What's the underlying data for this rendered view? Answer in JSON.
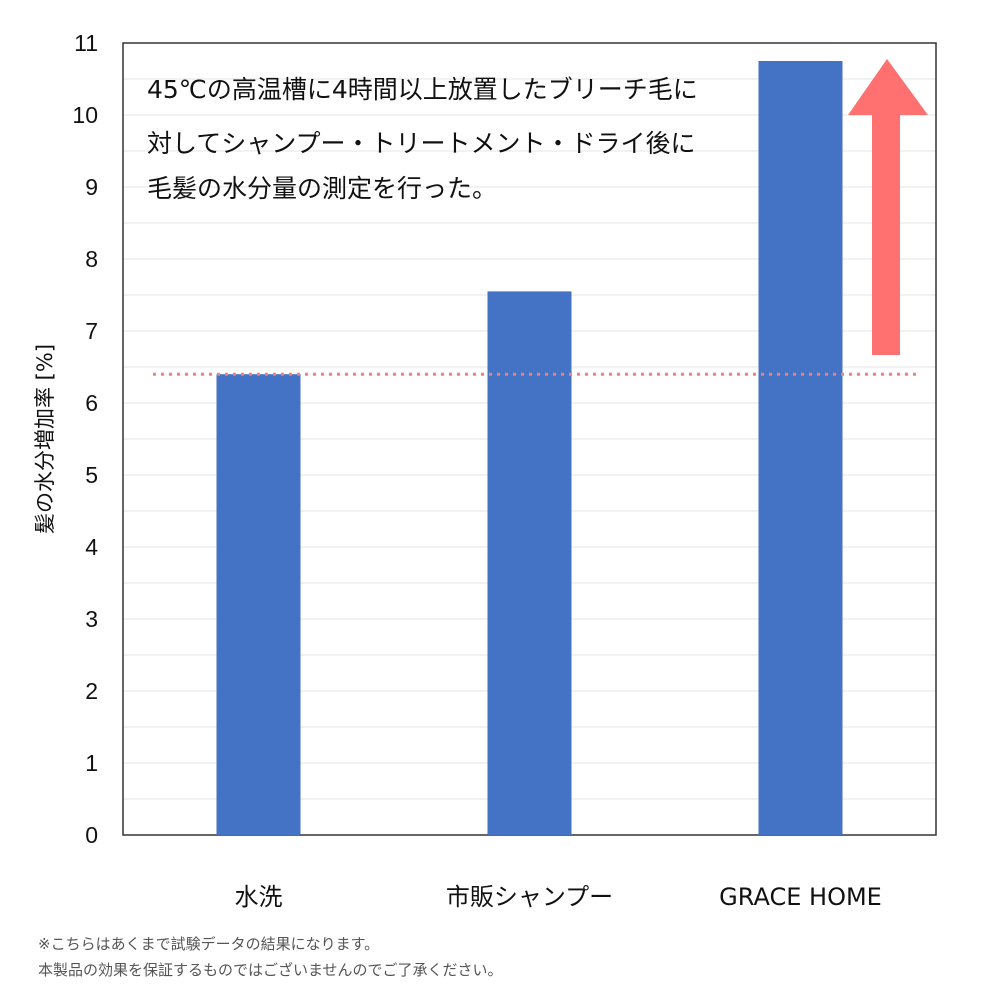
{
  "chart_data": {
    "type": "bar",
    "categories": [
      "水洗",
      "市販シャンプー",
      "GRACE HOME"
    ],
    "values": [
      6.4,
      7.55,
      10.75
    ],
    "ylabel": "髪の水分増加率 [%]",
    "xlabel": "",
    "ylim": [
      0,
      11
    ],
    "yticks": [
      0,
      1,
      2,
      3,
      4,
      5,
      6,
      7,
      8,
      9,
      10,
      11
    ],
    "grid": true,
    "bar_color": "#4472C4",
    "reference_line": {
      "value": 6.4,
      "style": "dotted",
      "color": "#F08080"
    },
    "arrow": {
      "direction": "up",
      "color": "#FF7070"
    },
    "annotation": [
      "45℃の高温槽に4時間以上放置したブリーチ毛に",
      "対してシャンプー・トリートメント・ドライ後に",
      "毛髪の水分量の測定を行った。"
    ]
  },
  "footnotes": [
    "※こちらはあくまで試験データの結果になります。",
    "本製品の効果を保証するものではございませんのでご了承ください。"
  ]
}
